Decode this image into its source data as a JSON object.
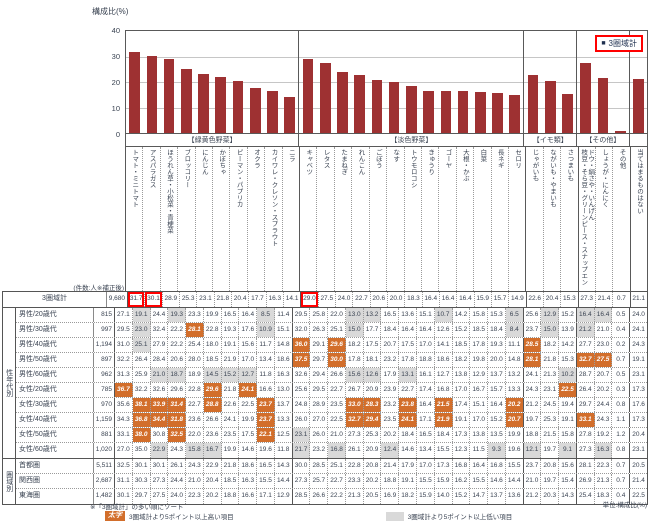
{
  "colors": {
    "bar": "#9e3132",
    "highlight_high": "#d26e2b",
    "highlight_low": "#d9d9d9",
    "red_box": "#ff0000",
    "text": "#3a4352"
  },
  "chart": {
    "ylabel": "構成比(%)",
    "legend": "3圏域計",
    "yticks": [
      "40",
      "30",
      "20",
      "10",
      "0"
    ]
  },
  "chart_data": {
    "type": "bar",
    "title": "構成比(%)",
    "legend": "3圏域計",
    "ylim": [
      0,
      40
    ],
    "grid": true,
    "group_headers": [
      {
        "label": "【緑黄色野菜】",
        "span": 10
      },
      {
        "label": "【淡色野菜】",
        "span": 13
      },
      {
        "label": "【イモ類】",
        "span": 3
      },
      {
        "label": "【その他】",
        "span": 3
      },
      {
        "label": "",
        "span": 1
      }
    ],
    "categories": [
      "トマト・ミニトマト",
      "アスパラガス",
      "ほうれん草・小松菜・青梗菜",
      "ブロッコリー",
      "にんじん",
      "かぼちゃ",
      "ピーマン・パプリカ",
      "オクラ",
      "カイワレ・クレソン・スプラウト",
      "ニラ",
      "キャベツ",
      "レタス",
      "たまねぎ",
      "れんこん",
      "ごぼう",
      "なす",
      "トウモロコシ",
      "きゅうり",
      "ゴーヤ",
      "大根・かぶ",
      "白菜",
      "長ネギ",
      "セロリ",
      "じゃがいも",
      "ながいも・やまいも",
      "さつまいも",
      "枝豆・そら豆・グリーンピース・スナップエンドウ・絹さや・いんげん",
      "しょうが・にんにく",
      "その他",
      "当てはまるものはない"
    ],
    "values": [
      31.7,
      30.1,
      28.9,
      25.3,
      23.1,
      21.8,
      20.4,
      17.7,
      16.3,
      14.1,
      29.0,
      27.5,
      24.0,
      22.7,
      20.6,
      20.0,
      18.3,
      16.4,
      16.4,
      16.4,
      15.9,
      15.7,
      14.9,
      22.6,
      20.4,
      15.3,
      27.3,
      21.4,
      0.7,
      21.1
    ]
  },
  "table": {
    "count_note": "(件数:人※補正後)",
    "sort_note": "※「3圏域計」の多い順にソート",
    "legend_high_marker": "太字",
    "legend_high": "3圏域計より5ポイント以上高い項目",
    "legend_low": "3圏域計より5ポイント以上低い項目",
    "unit_note": "単位:構成比(%)",
    "total_row": {
      "label": "3圏域計",
      "n": "9,680",
      "values": [
        31.7,
        30.1,
        28.9,
        25.3,
        23.1,
        21.8,
        20.4,
        17.7,
        16.3,
        14.1,
        29.0,
        27.5,
        24.0,
        22.7,
        20.6,
        20.0,
        18.3,
        16.4,
        16.4,
        16.4,
        15.9,
        15.7,
        14.9,
        22.6,
        20.4,
        15.3,
        27.3,
        21.4,
        0.7,
        21.1
      ],
      "red_boxes": [
        0,
        1,
        10
      ]
    },
    "groups": [
      {
        "label": "性年代別",
        "rows": [
          {
            "label": "男性/20歳代",
            "n": "815",
            "values": [
              27.1,
              19.1,
              24.4,
              19.3,
              23.3,
              19.9,
              16.5,
              16.4,
              8.5,
              11.4,
              29.5,
              25.8,
              22.0,
              13.0,
              13.2,
              16.5,
              13.6,
              15.1,
              10.7,
              14.2,
              15.8,
              15.3,
              6.5,
              25.6,
              12.9,
              15.2,
              16.4,
              16.4,
              0.5,
              24.0
            ]
          },
          {
            "label": "男性/30歳代",
            "n": "997",
            "values": [
              29.5,
              23.0,
              32.4,
              22.2,
              28.1,
              22.8,
              19.3,
              17.6,
              10.9,
              15.1,
              32.0,
              26.3,
              25.1,
              15.0,
              17.7,
              18.4,
              16.4,
              16.4,
              12.6,
              15.2,
              18.5,
              18.4,
              8.4,
              23.7,
              15.0,
              13.9,
              21.2,
              21.0,
              0.4,
              24.1
            ]
          },
          {
            "label": "男性/40歳代",
            "n": "1,194",
            "values": [
              31.0,
              25.1,
              27.9,
              22.2,
              25.4,
              18.0,
              19.1,
              15.6,
              11.7,
              14.8,
              36.0,
              29.1,
              29.6,
              18.2,
              17.5,
              20.7,
              17.5,
              17.0,
              14.1,
              18.5,
              17.8,
              19.3,
              11.1,
              28.5,
              18.2,
              14.2,
              27.7,
              23.0,
              0.2,
              24.3
            ]
          },
          {
            "label": "男性/50歳代",
            "n": "897",
            "values": [
              32.2,
              26.4,
              28.4,
              20.6,
              28.0,
              18.5,
              21.9,
              17.0,
              13.4,
              18.6,
              37.5,
              29.7,
              30.0,
              17.8,
              18.1,
              23.2,
              17.8,
              18.8,
              18.6,
              18.2,
              19.8,
              20.0,
              14.8,
              28.1,
              21.8,
              15.3,
              32.7,
              27.5,
              0.7,
              19.1
            ]
          },
          {
            "label": "男性/60歳代",
            "n": "962",
            "values": [
              31.3,
              25.9,
              21.0,
              18.7,
              18.9,
              14.5,
              15.2,
              12.7,
              11.8,
              16.3,
              32.6,
              29.4,
              26.6,
              15.6,
              12.6,
              17.9,
              13.1,
              16.1,
              12.7,
              13.8,
              12.9,
              13.7,
              13.2,
              24.1,
              21.3,
              10.2,
              28.7,
              20.7,
              0.5,
              23.1
            ]
          },
          {
            "label": "女性/20歳代",
            "n": "785",
            "values": [
              36.7,
              32.2,
              32.6,
              29.6,
              22.8,
              29.6,
              21.8,
              24.1,
              16.6,
              13.0,
              25.6,
              29.5,
              22.7,
              26.7,
              20.9,
              23.9,
              22.7,
              17.4,
              16.8,
              17.0,
              16.7,
              15.7,
              13.3,
              24.3,
              23.1,
              22.5,
              26.4,
              20.2,
              0.3,
              17.3
            ]
          },
          {
            "label": "女性/30歳代",
            "n": "970",
            "values": [
              35.6,
              38.1,
              33.9,
              31.4,
              22.7,
              28.8,
              22.6,
              22.5,
              23.7,
              13.7,
              24.8,
              28.9,
              23.5,
              33.0,
              28.3,
              23.2,
              23.8,
              16.4,
              21.5,
              17.4,
              15.1,
              16.4,
              20.2,
              21.2,
              24.5,
              19.4,
              29.7,
              24.4,
              0.8,
              17.6
            ]
          },
          {
            "label": "女性/40歳代",
            "n": "1,159",
            "values": [
              34.3,
              36.8,
              34.4,
              31.8,
              23.6,
              26.6,
              24.1,
              19.9,
              23.7,
              13.3,
              26.0,
              27.0,
              22.5,
              32.7,
              29.4,
              23.5,
              24.1,
              17.1,
              21.9,
              19.1,
              17.0,
              15.2,
              20.7,
              19.7,
              25.3,
              19.1,
              33.1,
              24.3,
              1.1,
              17.3
            ]
          },
          {
            "label": "女性/50歳代",
            "n": "881",
            "values": [
              33.1,
              38.0,
              30.8,
              32.5,
              22.0,
              23.6,
              23.5,
              17.5,
              22.1,
              12.5,
              23.1,
              26.0,
              21.0,
              27.3,
              25.3,
              20.2,
              18.4,
              16.5,
              18.4,
              17.3,
              13.8,
              13.5,
              19.9,
              18.8,
              21.5,
              15.8,
              27.8,
              19.2,
              1.2,
              20.4
            ]
          },
          {
            "label": "女性/60歳代",
            "n": "1,020",
            "values": [
              27.0,
              35.0,
              22.9,
              24.3,
              15.8,
              16.7,
              19.9,
              14.6,
              19.6,
              11.8,
              21.7,
              23.2,
              16.8,
              26.1,
              20.9,
              12.4,
              14.6,
              13.4,
              15.5,
              12.3,
              11.5,
              9.3,
              19.6,
              12.1,
              19.7,
              9.1,
              27.3,
              16.3,
              0.8,
              23.1
            ]
          }
        ]
      },
      {
        "label": "圏域別",
        "rows": [
          {
            "label": "首都圏",
            "n": "5,511",
            "values": [
              32.5,
              30.1,
              30.1,
              26.1,
              24.3,
              22.9,
              21.8,
              18.6,
              16.5,
              14.3,
              30.0,
              28.5,
              25.1,
              22.8,
              20.8,
              21.4,
              17.9,
              17.0,
              17.3,
              16.8,
              16.4,
              16.8,
              15.5,
              23.7,
              20.8,
              15.6,
              28.1,
              22.3,
              0.7,
              20.5
            ]
          },
          {
            "label": "関西圏",
            "n": "2,687",
            "values": [
              31.1,
              30.3,
              27.3,
              24.4,
              21.0,
              20.4,
              18.5,
              16.3,
              15.5,
              14.4,
              27.3,
              25.7,
              22.7,
              23.3,
              20.2,
              18.8,
              19.1,
              15.5,
              15.9,
              16.2,
              15.5,
              14.6,
              14.4,
              21.0,
              19.7,
              15.4,
              26.9,
              21.3,
              0.7,
              21.4
            ]
          },
          {
            "label": "東海圏",
            "n": "1,482",
            "values": [
              30.1,
              29.7,
              27.5,
              24.0,
              22.3,
              20.2,
              18.8,
              16.6,
              17.1,
              12.9,
              28.5,
              26.6,
              22.2,
              21.3,
              20.5,
              16.9,
              18.2,
              15.9,
              14.0,
              15.2,
              14.7,
              13.7,
              13.6,
              21.2,
              20.3,
              14.3,
              25.4,
              18.3,
              0.4,
              22.5
            ]
          }
        ]
      }
    ]
  }
}
